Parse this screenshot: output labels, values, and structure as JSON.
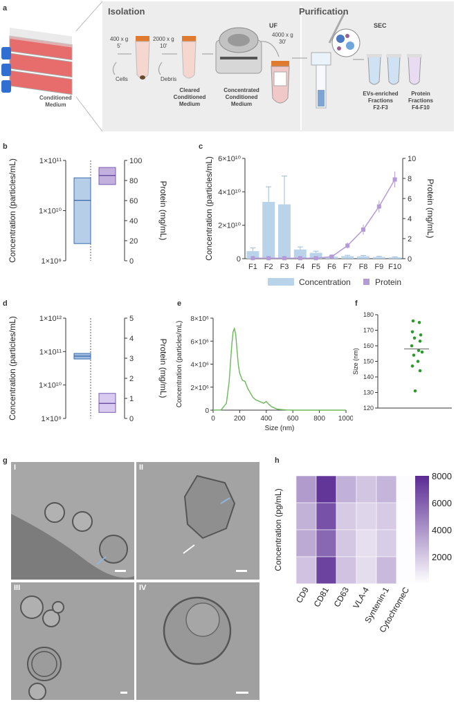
{
  "panel_labels": {
    "a": "a",
    "b": "b",
    "c": "c",
    "d": "d",
    "e": "e",
    "f": "f",
    "g": "g",
    "h": "h"
  },
  "panel_a": {
    "conditioned_medium": [
      "Conditioned",
      "Medium"
    ],
    "isolation_title": "Isolation",
    "purification_title": "Purification",
    "step1": [
      "400 x g",
      "5'"
    ],
    "step2": [
      "2000 x g",
      "10'"
    ],
    "uf_label": "UF",
    "step3": [
      "4000 x g",
      "30'"
    ],
    "sec_label": "SEC",
    "cells_label": "Cells",
    "debris_label": "Debris",
    "cleared_medium": [
      "Cleared",
      "Conditioned",
      "Medium"
    ],
    "concentrated_medium": [
      "Concentrated",
      "Conditioned",
      "Medium"
    ],
    "ev_fractions": [
      "EVs-enriched",
      "Fractions",
      "F2-F3"
    ],
    "protein_fractions": [
      "Protein",
      "Fractions",
      "F4-F10"
    ]
  },
  "chart_data": [
    {
      "id": "b",
      "type": "box",
      "ylabel_left": "Concentration (particles/mL)",
      "ylabel_right": "Protein (mg/mL)",
      "left_ticks": [
        "1×10¹¹",
        "1×10¹⁰",
        "1×10⁹"
      ],
      "right_ticks": [
        "100",
        "80",
        "60",
        "40",
        "20",
        "0"
      ],
      "concentration_box": {
        "min": 2200000000.0,
        "median": 16000000000.0,
        "max": 45000000000.0
      },
      "protein_box": {
        "min": 76,
        "median": 85,
        "max": 93
      },
      "colors": {
        "concentration": "#7aa6d6",
        "protein": "#a98fd0"
      }
    },
    {
      "id": "c",
      "type": "bar+line",
      "ylabel_left": "Concentration (particles/mL)",
      "ylabel_right": "Protein (mg/mL)",
      "left_ticks": [
        "6×10¹⁰",
        "4×10¹⁰",
        "2×10¹⁰",
        "0"
      ],
      "right_ticks": [
        "10",
        "8",
        "6",
        "4",
        "2",
        "0"
      ],
      "categories": [
        "F1",
        "F2",
        "F3",
        "F4",
        "F5",
        "F6",
        "F7",
        "F8",
        "F9",
        "F10"
      ],
      "concentration": [
        4500000000.0,
        34000000000.0,
        32500000000.0,
        5500000000.0,
        3500000000.0,
        1200000000.0,
        1500000000.0,
        1400000000.0,
        1000000000.0,
        800000000.0
      ],
      "concentration_err": [
        2000000000.0,
        9000000000.0,
        17000000000.0,
        1500000000.0,
        1000000000.0,
        500000000.0,
        500000000.0,
        500000000.0,
        400000000.0,
        300000000.0
      ],
      "protein": [
        0.05,
        0.05,
        0.05,
        0.05,
        0.05,
        0.2,
        1.3,
        2.9,
        5.2,
        7.9
      ],
      "protein_err": [
        0.05,
        0.05,
        0.05,
        0.05,
        0.05,
        0.2,
        0.3,
        0.5,
        0.6,
        0.8
      ],
      "legend": [
        "Concentration",
        "Protein"
      ],
      "colors": {
        "concentration": "#b9d3ea",
        "protein": "#b59ad8"
      }
    },
    {
      "id": "d",
      "type": "box",
      "ylabel_left": "Concentration (particles/mL)",
      "ylabel_right": "Protein (mg/mL)",
      "left_ticks": [
        "1×10¹²",
        "1×10¹¹",
        "1×10¹⁰",
        "1×10⁹"
      ],
      "right_ticks": [
        "5",
        "4",
        "3",
        "2",
        "1",
        "0"
      ],
      "concentration_box": {
        "min": 60000000000.0,
        "median": 73000000000.0,
        "max": 88000000000.0
      },
      "protein_box": {
        "min": 0.3,
        "median": 0.75,
        "max": 1.25
      },
      "colors": {
        "concentration": "#4f86c6",
        "protein": "#c9b4ea"
      }
    },
    {
      "id": "e",
      "type": "line",
      "ylabel": "Concentration (particles/mL)",
      "xlabel": "Size (nm)",
      "y_ticks": [
        "8×10⁶",
        "6×10⁶",
        "4×10⁶",
        "2×10⁶",
        "0"
      ],
      "x_ticks": [
        "0",
        "200",
        "400",
        "600",
        "800",
        "1000"
      ],
      "x": [
        0,
        60,
        100,
        120,
        140,
        150,
        160,
        170,
        180,
        190,
        200,
        220,
        240,
        260,
        280,
        300,
        320,
        340,
        360,
        380,
        400,
        420,
        440,
        460,
        480,
        500,
        550,
        600,
        700,
        800,
        1000
      ],
      "y": [
        0,
        20000.0,
        600000.0,
        2400000.0,
        5600000.0,
        6800000.0,
        7100000.0,
        6600000.0,
        5200000.0,
        3900000.0,
        3200000.0,
        2600000.0,
        2500000.0,
        1900000.0,
        1500000.0,
        1100000.0,
        900000.0,
        800000.0,
        700000.0,
        600000.0,
        750000.0,
        500000.0,
        300000.0,
        200000.0,
        100000.0,
        60000.0,
        20000.0,
        0,
        0,
        0,
        0
      ],
      "color": "#6ab85a"
    },
    {
      "id": "f",
      "type": "scatter",
      "ylabel": "Size (nm)",
      "y_ticks": [
        "180",
        "170",
        "160",
        "150",
        "140",
        "130",
        "120"
      ],
      "ylim": [
        120,
        180
      ],
      "values": [
        176,
        175,
        169,
        167,
        165,
        163,
        160,
        157,
        156,
        154,
        150,
        147,
        144,
        131
      ],
      "mean": 158,
      "color": "#2e9a2e"
    },
    {
      "id": "h",
      "type": "heatmap",
      "ylabel": "Concentration (pg/mL)",
      "columns": [
        "CD9",
        "CD81",
        "CD63",
        "VLA-4",
        "Syntenin-1",
        "CytochromeC"
      ],
      "rows": [
        [
          3800,
          7600,
          3000,
          2200,
          2800,
          150
        ],
        [
          2900,
          6600,
          2000,
          1600,
          2000,
          100
        ],
        [
          3200,
          5700,
          2100,
          1200,
          1900,
          100
        ],
        [
          2300,
          7100,
          2300,
          1300,
          2600,
          100
        ]
      ],
      "scale_ticks": [
        "8000",
        "6000",
        "4000",
        "2000"
      ],
      "scale_max": 8000,
      "color_max": "#5a2b94"
    }
  ],
  "panel_g": {
    "quadrants": [
      "I",
      "II",
      "III",
      "IV"
    ]
  }
}
